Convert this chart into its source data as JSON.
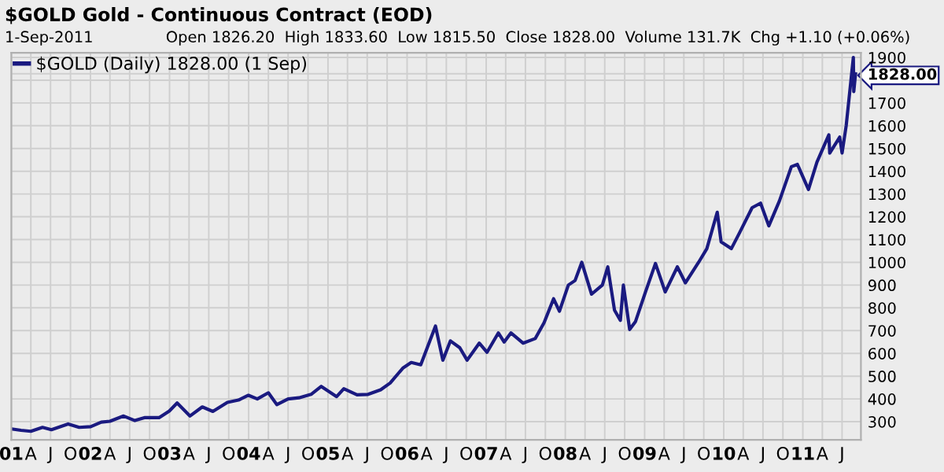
{
  "chart_data": {
    "type": "line",
    "title": "$GOLD Gold - Continuous Contract (EOD)",
    "subtitle": "1-Sep-2011",
    "annotations": [
      "Open 1826.20  High 1833.60  Low 1815.50  Close 1828.00  Volume 131.7K  Chg +1.10 (+0.06%)"
    ],
    "x": [
      "2001-01-02",
      "2001-02-15",
      "2001-04-01",
      "2001-05-25",
      "2001-07-05",
      "2001-09-20",
      "2001-11-10",
      "2002-01-02",
      "2002-02-20",
      "2002-04-01",
      "2002-06-03",
      "2002-07-25",
      "2002-09-10",
      "2002-11-15",
      "2002-12-31",
      "2003-02-05",
      "2003-04-05",
      "2003-06-01",
      "2003-07-20",
      "2003-09-25",
      "2003-11-15",
      "2003-12-31",
      "2004-02-10",
      "2004-04-01",
      "2004-05-10",
      "2004-07-01",
      "2004-08-20",
      "2004-10-15",
      "2004-12-01",
      "2005-02-10",
      "2005-03-15",
      "2005-05-15",
      "2005-07-05",
      "2005-09-01",
      "2005-10-15",
      "2005-12-12",
      "2006-01-20",
      "2006-03-05",
      "2006-05-12",
      "2006-06-15",
      "2006-07-20",
      "2006-09-01",
      "2006-10-05",
      "2006-11-30",
      "2007-01-05",
      "2007-02-26",
      "2007-03-25",
      "2007-04-25",
      "2007-06-20",
      "2007-08-15",
      "2007-09-25",
      "2007-11-08",
      "2007-12-05",
      "2008-01-15",
      "2008-02-15",
      "2008-03-17",
      "2008-05-01",
      "2008-06-20",
      "2008-07-15",
      "2008-08-15",
      "2008-09-11",
      "2008-09-25",
      "2008-10-24",
      "2008-11-20",
      "2009-01-05",
      "2009-02-20",
      "2009-04-06",
      "2009-06-01",
      "2009-07-08",
      "2009-09-07",
      "2009-10-15",
      "2009-12-02",
      "2009-12-20",
      "2010-02-05",
      "2010-03-15",
      "2010-05-12",
      "2010-06-20",
      "2010-07-28",
      "2010-09-15",
      "2010-11-09",
      "2010-12-07",
      "2011-01-27",
      "2011-03-07",
      "2011-05-01",
      "2011-05-05",
      "2011-06-20",
      "2011-07-01",
      "2011-07-20",
      "2011-08-10",
      "2011-08-22",
      "2011-08-24",
      "2011-09-01"
    ],
    "series": [
      {
        "name": "$GOLD (Daily) 1828.00 (1 Sep)",
        "color": "#1a1a80",
        "values": [
          268,
          262,
          258,
          275,
          265,
          290,
          275,
          278,
          298,
          302,
          325,
          305,
          318,
          318,
          347,
          382,
          325,
          365,
          345,
          385,
          395,
          416,
          400,
          427,
          375,
          400,
          405,
          420,
          455,
          410,
          445,
          418,
          420,
          440,
          470,
          535,
          560,
          550,
          720,
          570,
          655,
          625,
          570,
          645,
          605,
          690,
          650,
          690,
          645,
          665,
          735,
          840,
          785,
          900,
          920,
          1000,
          860,
          900,
          980,
          790,
          745,
          900,
          705,
          740,
          870,
          995,
          870,
          980,
          910,
          1000,
          1060,
          1220,
          1090,
          1060,
          1130,
          1240,
          1260,
          1160,
          1270,
          1420,
          1430,
          1320,
          1440,
          1560,
          1480,
          1550,
          1480,
          1600,
          1790,
          1900,
          1750,
          1828
        ]
      }
    ],
    "xlim": [
      "2001-01-01",
      "2011-09-26"
    ],
    "xticks": [
      {
        "value": "2001-01-01",
        "label": "01"
      },
      {
        "value": "2001-04-01",
        "label": "A"
      },
      {
        "value": "2001-07-01",
        "label": "J"
      },
      {
        "value": "2001-10-01",
        "label": "O"
      },
      {
        "value": "2002-01-01",
        "label": "02"
      },
      {
        "value": "2002-04-01",
        "label": "A"
      },
      {
        "value": "2002-07-01",
        "label": "J"
      },
      {
        "value": "2002-10-01",
        "label": "O"
      },
      {
        "value": "2003-01-01",
        "label": "03"
      },
      {
        "value": "2003-04-01",
        "label": "A"
      },
      {
        "value": "2003-07-01",
        "label": "J"
      },
      {
        "value": "2003-10-01",
        "label": "O"
      },
      {
        "value": "2004-01-01",
        "label": "04"
      },
      {
        "value": "2004-04-01",
        "label": "A"
      },
      {
        "value": "2004-07-01",
        "label": "J"
      },
      {
        "value": "2004-10-01",
        "label": "O"
      },
      {
        "value": "2005-01-01",
        "label": "05"
      },
      {
        "value": "2005-04-01",
        "label": "A"
      },
      {
        "value": "2005-07-01",
        "label": "J"
      },
      {
        "value": "2005-10-01",
        "label": "O"
      },
      {
        "value": "2006-01-01",
        "label": "06"
      },
      {
        "value": "2006-04-01",
        "label": "A"
      },
      {
        "value": "2006-07-01",
        "label": "J"
      },
      {
        "value": "2006-10-01",
        "label": "O"
      },
      {
        "value": "2007-01-01",
        "label": "07"
      },
      {
        "value": "2007-04-01",
        "label": "A"
      },
      {
        "value": "2007-07-01",
        "label": "J"
      },
      {
        "value": "2007-10-01",
        "label": "O"
      },
      {
        "value": "2008-01-01",
        "label": "08"
      },
      {
        "value": "2008-04-01",
        "label": "A"
      },
      {
        "value": "2008-07-01",
        "label": "J"
      },
      {
        "value": "2008-10-01",
        "label": "O"
      },
      {
        "value": "2009-01-01",
        "label": "09"
      },
      {
        "value": "2009-04-01",
        "label": "A"
      },
      {
        "value": "2009-07-01",
        "label": "J"
      },
      {
        "value": "2009-10-01",
        "label": "O"
      },
      {
        "value": "2010-01-01",
        "label": "10"
      },
      {
        "value": "2010-04-01",
        "label": "A"
      },
      {
        "value": "2010-07-01",
        "label": "J"
      },
      {
        "value": "2010-10-01",
        "label": "O"
      },
      {
        "value": "2011-01-01",
        "label": "11"
      },
      {
        "value": "2011-04-01",
        "label": "A"
      },
      {
        "value": "2011-07-01",
        "label": "J"
      }
    ],
    "ylim": [
      220,
      1920
    ],
    "yticks": [
      300,
      400,
      500,
      600,
      700,
      800,
      900,
      1000,
      1100,
      1200,
      1300,
      1400,
      1500,
      1600,
      1700,
      {
        "value": 1800,
        "label": null
      },
      {
        "value": 1828,
        "label": "1828.00"
      },
      1900
    ],
    "grid": true,
    "legend": "top left"
  }
}
